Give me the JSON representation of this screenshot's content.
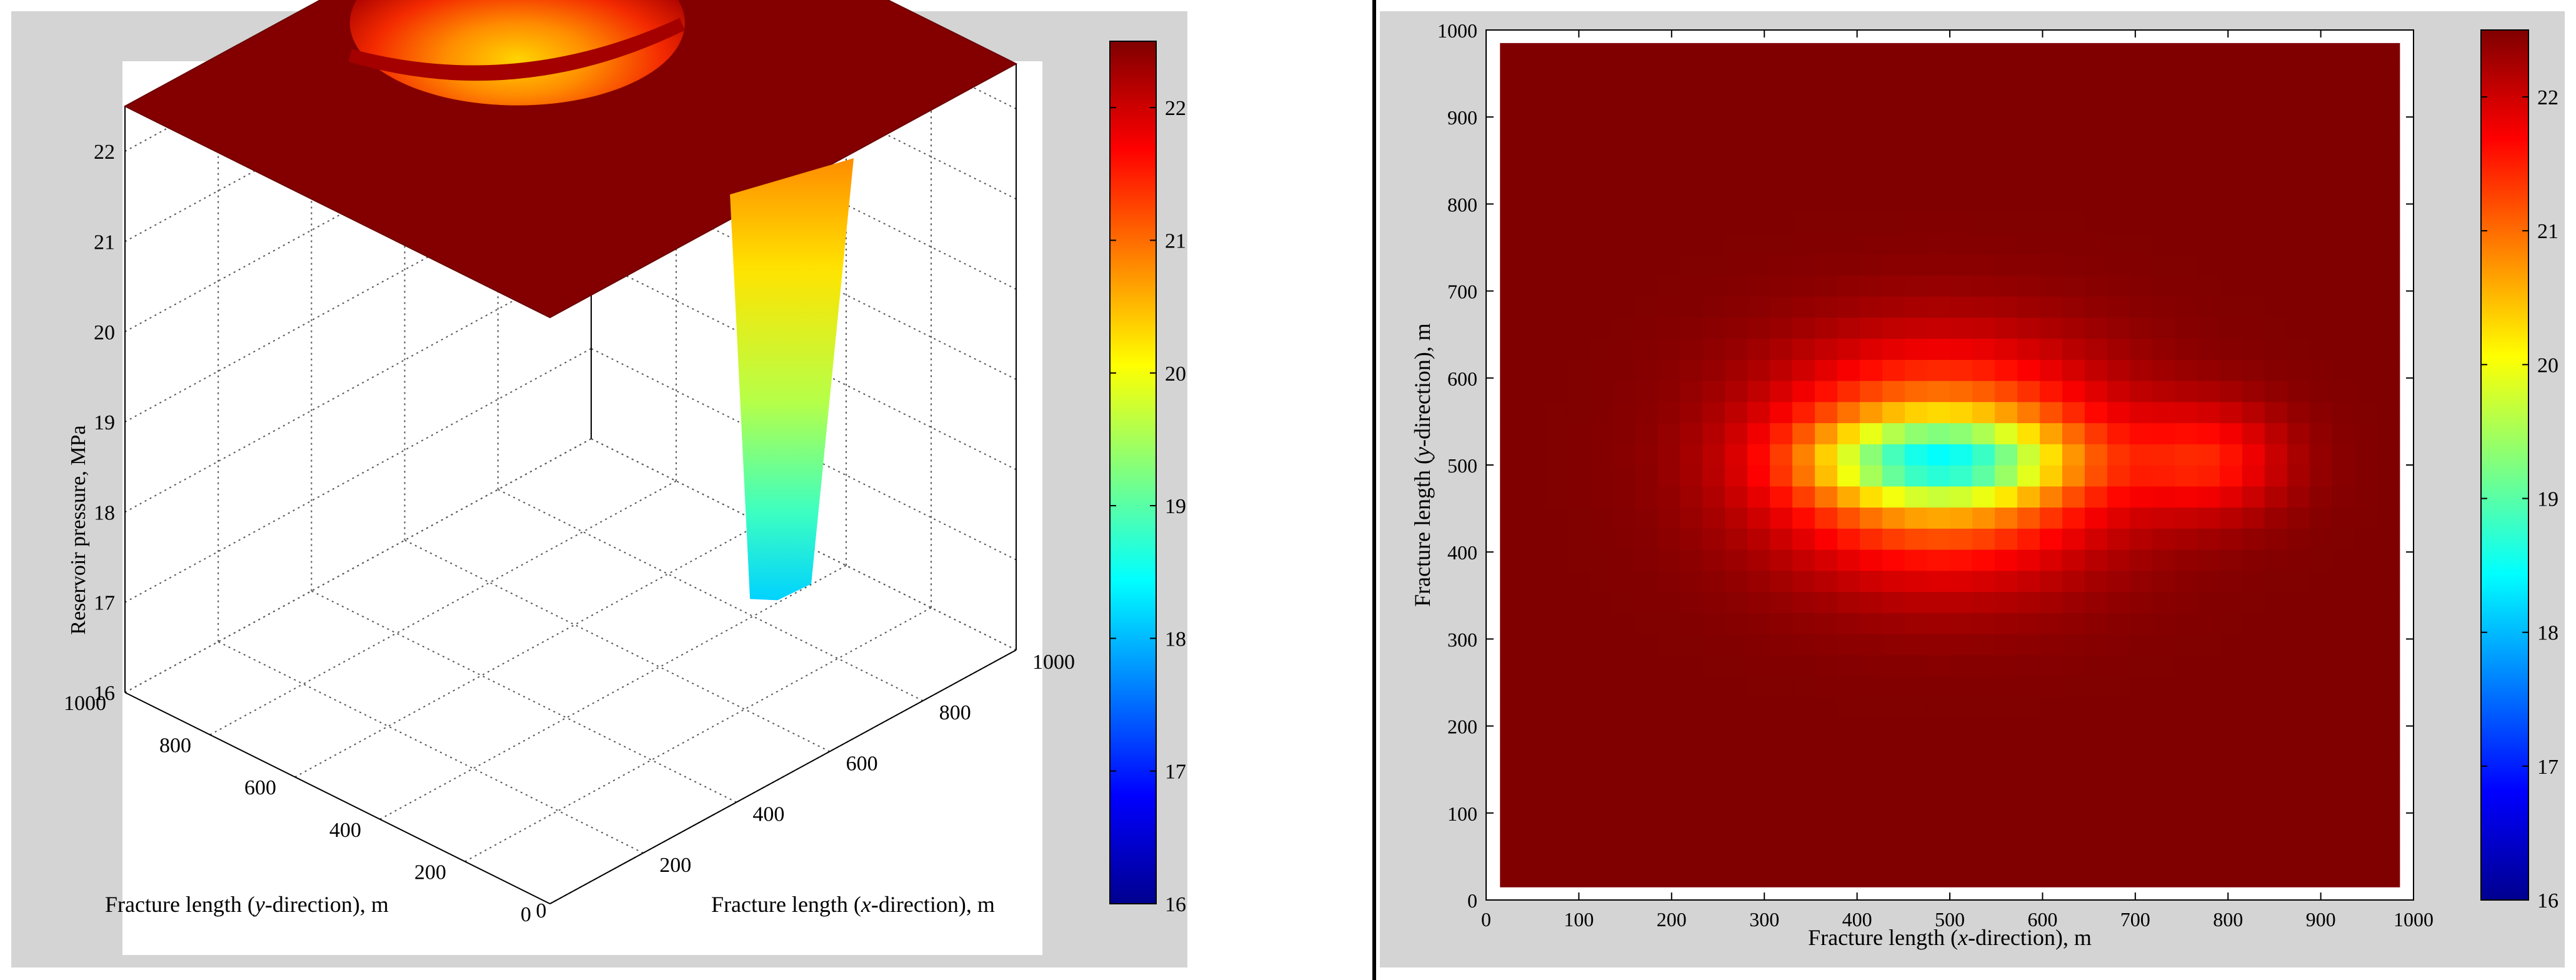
{
  "chart_data": [
    {
      "type": "surface",
      "title": "",
      "xlabel_parts": [
        "Fracture length (",
        "x",
        "-direction), m"
      ],
      "ylabel_parts": [
        "Fracture length (",
        "y",
        "-direction), m"
      ],
      "zlabel": "Reservoir pressure, MPa",
      "xlim": [
        0,
        1000
      ],
      "ylim": [
        0,
        1000
      ],
      "zlim": [
        16,
        22.5
      ],
      "x_ticks": [
        "200",
        "400",
        "600",
        "800",
        "1000"
      ],
      "y_ticks": [
        "0",
        "200",
        "400",
        "600",
        "800",
        "1000"
      ],
      "z_ticks": [
        "16",
        "17",
        "18",
        "19",
        "20",
        "21",
        "22"
      ],
      "x_tick_values": [
        200,
        400,
        600,
        800,
        1000
      ],
      "y_tick_values": [
        0,
        200,
        400,
        600,
        800,
        1000
      ],
      "z_tick_values": [
        16,
        17,
        18,
        19,
        20,
        21,
        22
      ],
      "x_zero_label": "0",
      "background_pressure": 22.5,
      "min_pressure": 18.0,
      "depression_center": [
        500,
        500
      ],
      "depression_extent_x": [
        300,
        810
      ],
      "depression_extent_y": [
        370,
        680
      ],
      "colorbar": {
        "range": [
          16,
          22.5
        ],
        "ticks": [
          "16",
          "17",
          "18",
          "19",
          "20",
          "21",
          "22"
        ],
        "tick_values": [
          16,
          17,
          18,
          19,
          20,
          21,
          22
        ]
      },
      "colormap": "jet",
      "grid": true
    },
    {
      "type": "heatmap",
      "title": "",
      "xlabel_parts": [
        "Fracture length (",
        "x",
        "-direction), m"
      ],
      "ylabel_parts": [
        "Fracture length (",
        "y",
        "-direction), m"
      ],
      "xlim": [
        0,
        1000
      ],
      "ylim": [
        0,
        1000
      ],
      "x_ticks": [
        "0",
        "100",
        "200",
        "300",
        "400",
        "500",
        "600",
        "700",
        "800",
        "900",
        "1000"
      ],
      "y_ticks": [
        "0",
        "100",
        "200",
        "300",
        "400",
        "500",
        "600",
        "700",
        "800",
        "900",
        "1000"
      ],
      "x_tick_values": [
        0,
        100,
        200,
        300,
        400,
        500,
        600,
        700,
        800,
        900,
        1000
      ],
      "y_tick_values": [
        0,
        100,
        200,
        300,
        400,
        500,
        600,
        700,
        800,
        900,
        1000
      ],
      "data_extent": [
        15,
        985
      ],
      "background_pressure": 22.5,
      "min_pressure": 18.2,
      "depression_center": [
        490,
        505
      ],
      "depression_extent_x": [
        300,
        820
      ],
      "depression_extent_y": [
        340,
        700
      ],
      "colorbar": {
        "range": [
          16,
          22.5
        ],
        "ticks": [
          "16",
          "17",
          "18",
          "19",
          "20",
          "21",
          "22"
        ],
        "tick_values": [
          16,
          17,
          18,
          19,
          20,
          21,
          22
        ]
      },
      "colormap": "jet",
      "grid": false
    }
  ]
}
